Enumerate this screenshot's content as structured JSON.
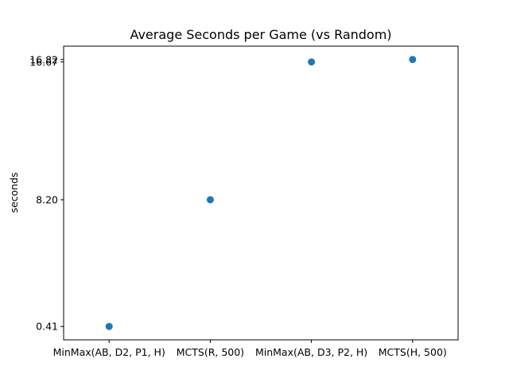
{
  "chart_data": {
    "type": "scatter",
    "title": "Average Seconds per Game (vs Random)",
    "xlabel": "",
    "ylabel": "seconds",
    "categories": [
      "MinMax(AB, D2, P1, H)",
      "MCTS(R, 500)",
      "MinMax(AB, D3, P2, H)",
      "MCTS(H, 500)"
    ],
    "values": [
      0.41,
      8.2,
      16.67,
      16.82
    ],
    "yticks": [
      0.41,
      8.2,
      16.67,
      16.82
    ],
    "ytick_labels": [
      "0.41",
      "8.20",
      "16.67",
      "16.82"
    ],
    "ylim": [
      -0.41,
      17.64
    ],
    "grid": false,
    "legend": "none",
    "color": "#1f77b4"
  }
}
